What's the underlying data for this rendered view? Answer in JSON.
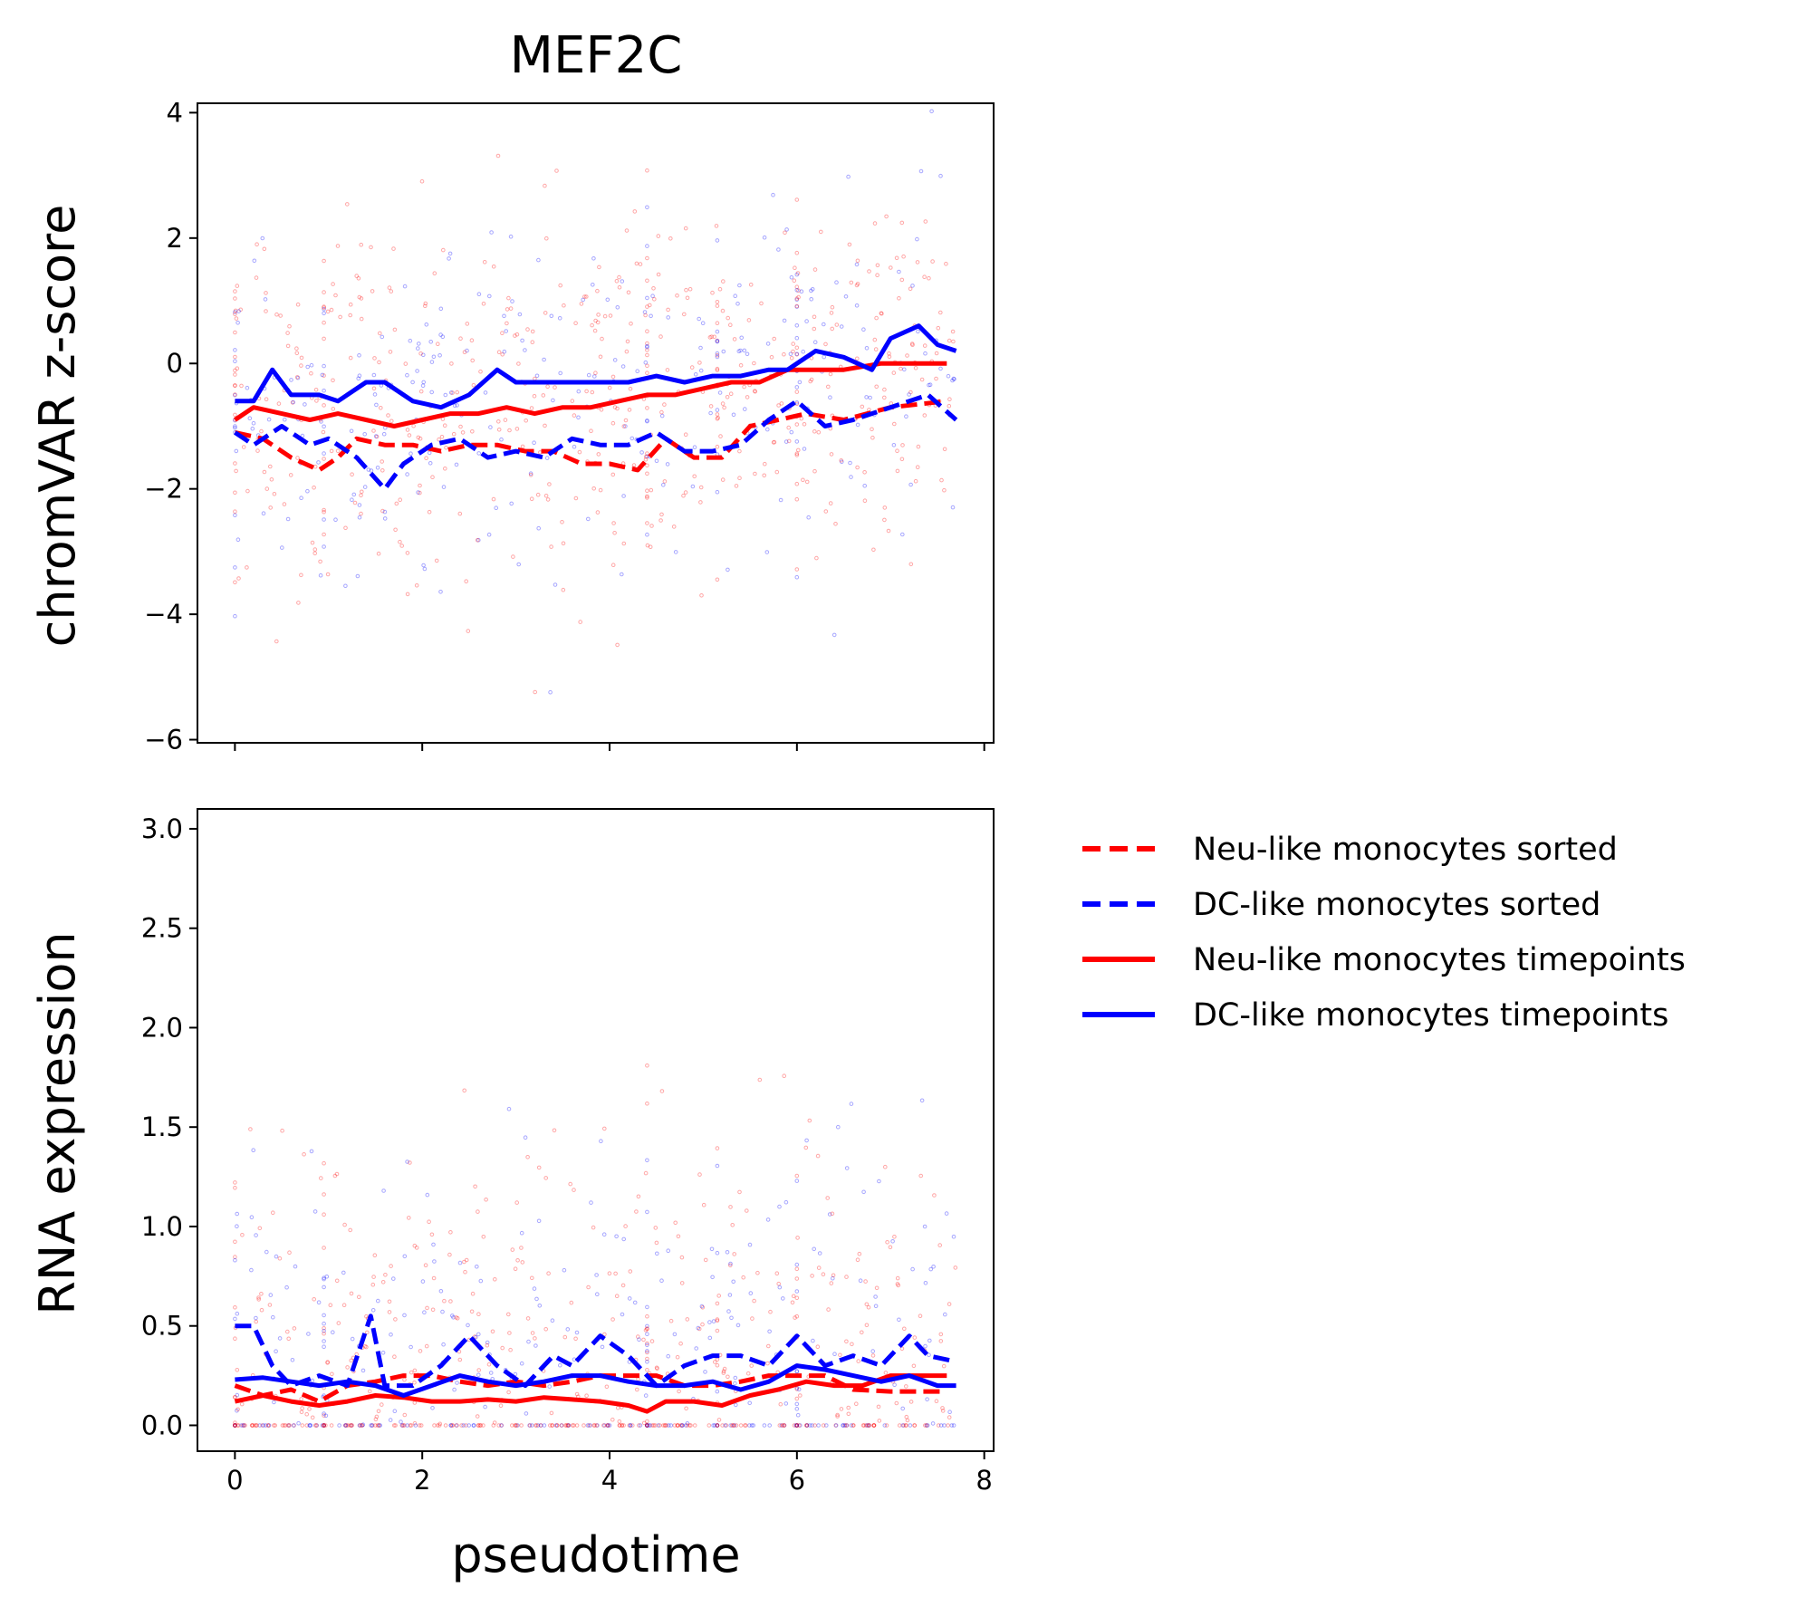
{
  "chart_data": {
    "type": "line",
    "title": "MEF2C",
    "shared_x": {
      "label": "pseudotime",
      "range": [
        -0.4,
        8.1
      ],
      "ticks": [
        "0",
        "2",
        "4",
        "6",
        "8"
      ],
      "tick_values": [
        0,
        2,
        4,
        6,
        8
      ]
    },
    "panels": [
      {
        "ylabel": "chromVAR z-score",
        "ylim": [
          -6.05,
          4.15
        ],
        "yticks": [
          "4",
          "2",
          "0",
          "−2",
          "−4",
          "−6"
        ],
        "ytick_values": [
          4,
          2,
          0,
          -2,
          -4,
          -6
        ],
        "series": [
          {
            "name": "Neu-like monocytes sorted",
            "color": "#ff0000",
            "dash": true,
            "x": [
              0,
              0.3,
              0.6,
              0.9,
              1.1,
              1.3,
              1.6,
              1.9,
              2.2,
              2.5,
              2.8,
              3.1,
              3.4,
              3.7,
              4.0,
              4.3,
              4.6,
              4.9,
              5.2,
              5.5,
              5.8,
              6.1,
              6.5,
              7.0,
              7.6
            ],
            "y": [
              -1.1,
              -1.2,
              -1.5,
              -1.7,
              -1.5,
              -1.2,
              -1.3,
              -1.3,
              -1.4,
              -1.3,
              -1.3,
              -1.4,
              -1.4,
              -1.6,
              -1.6,
              -1.7,
              -1.2,
              -1.5,
              -1.5,
              -1.0,
              -0.9,
              -0.8,
              -0.9,
              -0.7,
              -0.6
            ]
          },
          {
            "name": "DC-like monocytes sorted",
            "color": "#0000ff",
            "dash": true,
            "x": [
              0,
              0.2,
              0.5,
              0.8,
              1.0,
              1.3,
              1.6,
              1.8,
              2.1,
              2.4,
              2.7,
              3.0,
              3.3,
              3.6,
              3.9,
              4.2,
              4.5,
              4.8,
              5.1,
              5.4,
              5.7,
              6.0,
              6.3,
              6.6,
              7.0,
              7.4,
              7.7
            ],
            "y": [
              -1.1,
              -1.3,
              -1.0,
              -1.3,
              -1.2,
              -1.5,
              -2.0,
              -1.6,
              -1.3,
              -1.2,
              -1.5,
              -1.4,
              -1.5,
              -1.2,
              -1.3,
              -1.3,
              -1.1,
              -1.4,
              -1.4,
              -1.3,
              -0.9,
              -0.6,
              -1.0,
              -0.9,
              -0.7,
              -0.5,
              -0.9
            ]
          },
          {
            "name": "Neu-like monocytes timepoints",
            "color": "#ff0000",
            "dash": false,
            "x": [
              0,
              0.2,
              0.5,
              0.8,
              1.1,
              1.4,
              1.7,
              2.0,
              2.3,
              2.6,
              2.9,
              3.2,
              3.5,
              3.8,
              4.1,
              4.4,
              4.7,
              5.0,
              5.3,
              5.6,
              5.9,
              6.2,
              6.5,
              6.9,
              7.3,
              7.6
            ],
            "y": [
              -0.9,
              -0.7,
              -0.8,
              -0.9,
              -0.8,
              -0.9,
              -1.0,
              -0.9,
              -0.8,
              -0.8,
              -0.7,
              -0.8,
              -0.7,
              -0.7,
              -0.6,
              -0.5,
              -0.5,
              -0.4,
              -0.3,
              -0.3,
              -0.1,
              -0.1,
              -0.1,
              0.0,
              0.0,
              0.0
            ]
          },
          {
            "name": "DC-like monocytes timepoints",
            "color": "#0000ff",
            "dash": false,
            "x": [
              0,
              0.2,
              0.4,
              0.6,
              0.9,
              1.1,
              1.4,
              1.6,
              1.9,
              2.2,
              2.5,
              2.8,
              3.0,
              3.3,
              3.6,
              3.9,
              4.2,
              4.5,
              4.8,
              5.1,
              5.4,
              5.7,
              5.9,
              6.2,
              6.5,
              6.8,
              7.0,
              7.3,
              7.5,
              7.7
            ],
            "y": [
              -0.6,
              -0.6,
              -0.1,
              -0.5,
              -0.5,
              -0.6,
              -0.3,
              -0.3,
              -0.6,
              -0.7,
              -0.5,
              -0.1,
              -0.3,
              -0.3,
              -0.3,
              -0.3,
              -0.3,
              -0.2,
              -0.3,
              -0.2,
              -0.2,
              -0.1,
              -0.1,
              0.2,
              0.1,
              -0.1,
              0.4,
              0.6,
              0.3,
              0.2
            ]
          }
        ]
      },
      {
        "ylabel": "RNA expression",
        "ylim": [
          -0.13,
          3.1
        ],
        "yticks": [
          "3.0",
          "2.5",
          "2.0",
          "1.5",
          "1.0",
          "0.5",
          "0.0"
        ],
        "ytick_values": [
          3.0,
          2.5,
          2.0,
          1.5,
          1.0,
          0.5,
          0.0
        ],
        "series": [
          {
            "name": "Neu-like monocytes sorted",
            "color": "#ff0000",
            "dash": true,
            "x": [
              0,
              0.3,
              0.6,
              0.9,
              1.2,
              1.5,
              1.8,
              2.1,
              2.4,
              2.7,
              3.0,
              3.3,
              3.6,
              3.9,
              4.2,
              4.5,
              4.8,
              5.1,
              5.4,
              5.7,
              6.0,
              6.3,
              6.6,
              7.0,
              7.3,
              7.6
            ],
            "y": [
              0.2,
              0.15,
              0.18,
              0.12,
              0.2,
              0.22,
              0.25,
              0.25,
              0.22,
              0.2,
              0.22,
              0.2,
              0.22,
              0.25,
              0.25,
              0.25,
              0.2,
              0.2,
              0.22,
              0.25,
              0.25,
              0.25,
              0.18,
              0.17,
              0.17,
              0.17
            ]
          },
          {
            "name": "DC-like monocytes sorted",
            "color": "#0000ff",
            "dash": true,
            "x": [
              0,
              0.2,
              0.4,
              0.6,
              0.9,
              1.2,
              1.45,
              1.6,
              1.9,
              2.2,
              2.5,
              2.8,
              3.1,
              3.4,
              3.6,
              3.9,
              4.2,
              4.5,
              4.8,
              5.1,
              5.4,
              5.7,
              6.0,
              6.3,
              6.6,
              6.9,
              7.2,
              7.4,
              7.7
            ],
            "y": [
              0.5,
              0.5,
              0.3,
              0.2,
              0.25,
              0.2,
              0.55,
              0.2,
              0.2,
              0.3,
              0.45,
              0.3,
              0.2,
              0.35,
              0.3,
              0.45,
              0.35,
              0.2,
              0.3,
              0.35,
              0.35,
              0.3,
              0.45,
              0.3,
              0.35,
              0.3,
              0.45,
              0.35,
              0.32
            ]
          },
          {
            "name": "Neu-like monocytes timepoints",
            "color": "#ff0000",
            "dash": false,
            "x": [
              0,
              0.3,
              0.6,
              0.9,
              1.2,
              1.5,
              1.8,
              2.1,
              2.4,
              2.7,
              3.0,
              3.3,
              3.6,
              3.9,
              4.2,
              4.4,
              4.6,
              4.9,
              5.2,
              5.5,
              5.8,
              6.1,
              6.4,
              6.7,
              7.0,
              7.6
            ],
            "y": [
              0.12,
              0.15,
              0.12,
              0.1,
              0.12,
              0.15,
              0.14,
              0.12,
              0.12,
              0.13,
              0.12,
              0.14,
              0.13,
              0.12,
              0.1,
              0.07,
              0.12,
              0.12,
              0.1,
              0.15,
              0.18,
              0.22,
              0.2,
              0.2,
              0.25,
              0.25
            ]
          },
          {
            "name": "DC-like monocytes timepoints",
            "color": "#0000ff",
            "dash": false,
            "x": [
              0,
              0.3,
              0.6,
              0.9,
              1.2,
              1.5,
              1.8,
              2.1,
              2.4,
              2.7,
              3.0,
              3.3,
              3.6,
              3.9,
              4.2,
              4.5,
              4.8,
              5.1,
              5.4,
              5.7,
              6.0,
              6.3,
              6.6,
              6.9,
              7.2,
              7.5,
              7.7
            ],
            "y": [
              0.23,
              0.24,
              0.22,
              0.2,
              0.22,
              0.2,
              0.15,
              0.2,
              0.25,
              0.22,
              0.2,
              0.22,
              0.25,
              0.25,
              0.22,
              0.2,
              0.2,
              0.22,
              0.18,
              0.22,
              0.3,
              0.28,
              0.25,
              0.22,
              0.25,
              0.2,
              0.2
            ]
          }
        ]
      }
    ],
    "legend": {
      "placement": "right of lower panel",
      "entries": [
        {
          "label": "Neu-like monocytes sorted",
          "color": "#ff0000",
          "dash": true
        },
        {
          "label": "DC-like monocytes sorted",
          "color": "#0000ff",
          "dash": true
        },
        {
          "label": "Neu-like monocytes timepoints",
          "color": "#ff0000",
          "dash": false
        },
        {
          "label": "DC-like monocytes timepoints",
          "color": "#0000ff",
          "dash": false
        }
      ]
    },
    "scatter_background": {
      "note_shown": false,
      "colors": [
        "#ff0000",
        "#0000ff"
      ]
    }
  }
}
